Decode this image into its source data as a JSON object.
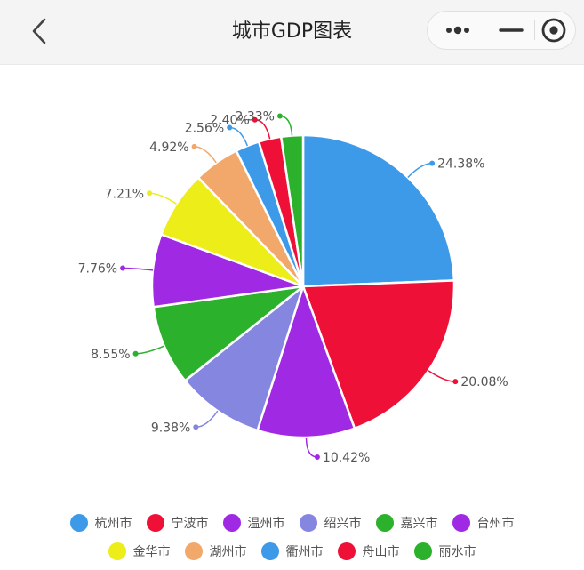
{
  "header": {
    "title": "城市GDP图表"
  },
  "chart_data": {
    "type": "pie",
    "categories": [
      "杭州市",
      "宁波市",
      "温州市",
      "绍兴市",
      "嘉兴市",
      "台州市",
      "金华市",
      "湖州市",
      "衢州市",
      "舟山市",
      "丽水市"
    ],
    "values": [
      24.38,
      20.08,
      10.42,
      9.38,
      8.55,
      7.76,
      7.21,
      4.92,
      2.56,
      2.4,
      2.33
    ],
    "labels": [
      "24.38%",
      "20.08%",
      "10.42%",
      "9.38%",
      "8.55%",
      "7.76%",
      "7.21%",
      "4.92%",
      "2.56%",
      "2.40%",
      "2.33%"
    ],
    "colors": [
      "#3d9ae8",
      "#ee1037",
      "#a029e3",
      "#8586e0",
      "#2bb12b",
      "#a029e3",
      "#eded19",
      "#f2a86a",
      "#3d9ae8",
      "#ee1037",
      "#2bb12b"
    ],
    "legend_position": "bottom"
  }
}
